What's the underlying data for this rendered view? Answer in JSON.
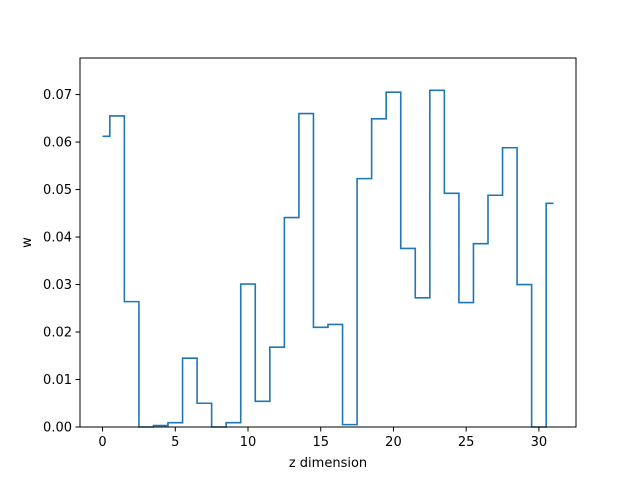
{
  "chart_data": {
    "type": "step",
    "title": "",
    "xlabel": "z dimension",
    "ylabel": "w",
    "xlim": [
      -1.55,
      32.55
    ],
    "ylim": [
      0.0,
      0.0777
    ],
    "xticks": [
      0,
      5,
      10,
      15,
      20,
      25,
      30
    ],
    "xtick_labels": [
      "0",
      "5",
      "10",
      "15",
      "20",
      "25",
      "30"
    ],
    "yticks": [
      0.0,
      0.01,
      0.02,
      0.03,
      0.04,
      0.05,
      0.06,
      0.07
    ],
    "ytick_labels": [
      "0.00",
      "0.01",
      "0.02",
      "0.03",
      "0.04",
      "0.05",
      "0.06",
      "0.07"
    ],
    "grid": false,
    "step_where": "mid",
    "line_color": "#1f77b4",
    "x": [
      0,
      1,
      2,
      3,
      4,
      5,
      6,
      7,
      8,
      9,
      10,
      11,
      12,
      13,
      14,
      15,
      16,
      17,
      18,
      19,
      20,
      21,
      22,
      23,
      24,
      25,
      26,
      27,
      28,
      29,
      30,
      31
    ],
    "values": [
      0.0612,
      0.0655,
      0.0264,
      0.0,
      0.0003,
      0.0009,
      0.0145,
      0.005,
      0.0,
      0.0009,
      0.0301,
      0.0054,
      0.0168,
      0.0441,
      0.066,
      0.021,
      0.0216,
      0.0005,
      0.0523,
      0.0649,
      0.0705,
      0.0376,
      0.0272,
      0.0709,
      0.0492,
      0.0262,
      0.0386,
      0.0488,
      0.0588,
      0.03,
      0.0,
      0.0471
    ]
  }
}
